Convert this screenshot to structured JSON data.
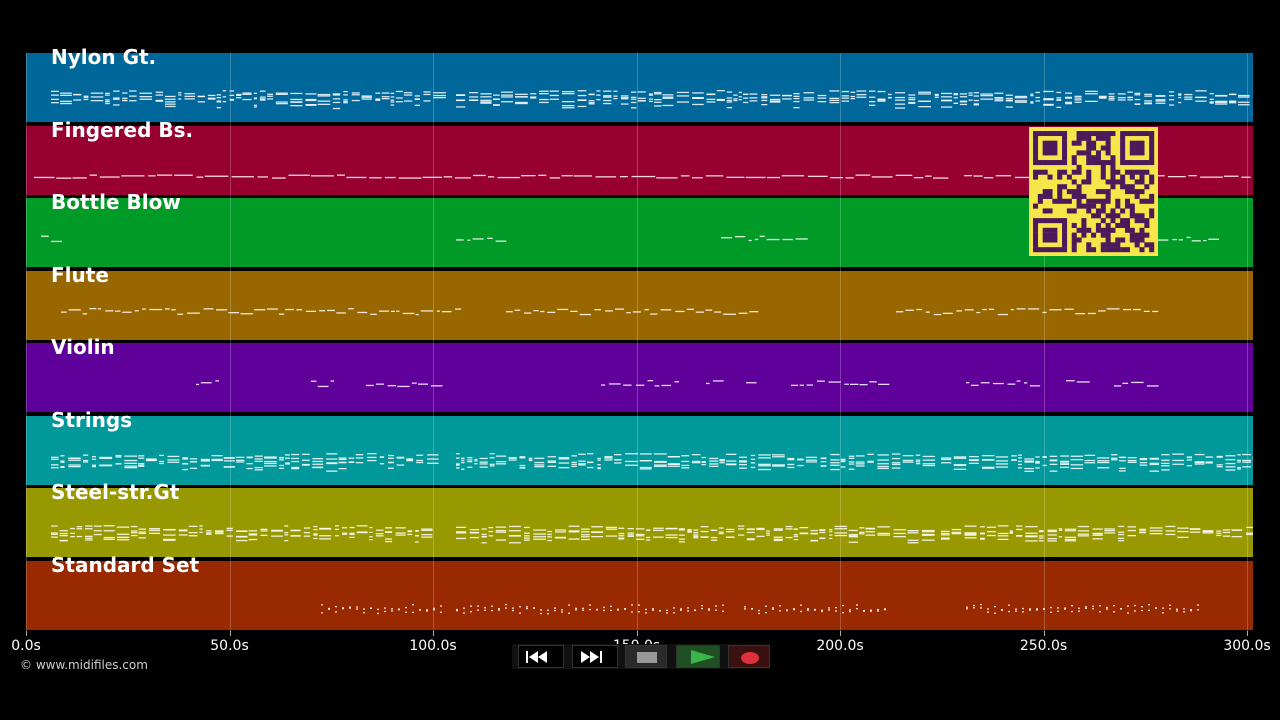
{
  "tracks": [
    {
      "name": "Nylon Gt.",
      "color": "#00679a",
      "pattern": "dense"
    },
    {
      "name": "Fingered Bs.",
      "color": "#980032",
      "pattern": "bass"
    },
    {
      "name": "Bottle Blow",
      "color": "#009a27",
      "pattern": "sparse"
    },
    {
      "name": "Flute",
      "color": "#986700",
      "pattern": "melody"
    },
    {
      "name": "Violin",
      "color": "#60009a",
      "pattern": "sparse-melody"
    },
    {
      "name": "Strings",
      "color": "#00989a",
      "pattern": "dense"
    },
    {
      "name": "Steel-str.Gt",
      "color": "#989800",
      "pattern": "dense"
    },
    {
      "name": "Standard Set",
      "color": "#982900",
      "pattern": "drums"
    }
  ],
  "timeline": {
    "ticks": [
      "0.0s",
      "50.0s",
      "100.0s",
      "150.0s",
      "200.0s",
      "250.0s",
      "300.0s"
    ],
    "tick_values": [
      0,
      50,
      100,
      150,
      200,
      250,
      300
    ],
    "range": [
      0,
      300
    ]
  },
  "copyright": "© www.midifiles.com",
  "transport": {
    "buttons": [
      "rewind",
      "fast-forward",
      "stop",
      "play",
      "record"
    ],
    "colors": {
      "stop": "#999999",
      "play": "#39b54a",
      "record": "#e0303a"
    }
  },
  "qr_code": {
    "colors": [
      "#f7e64a",
      "#4a1a5a"
    ]
  }
}
